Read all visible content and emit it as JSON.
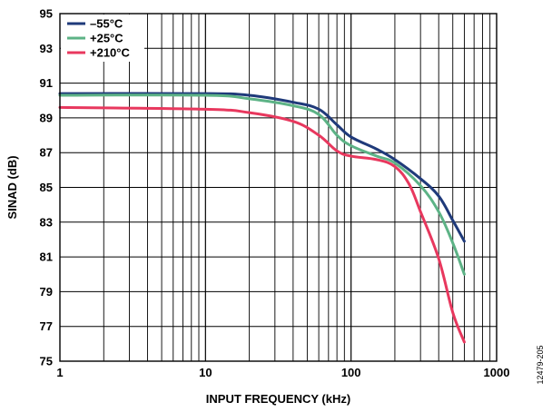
{
  "chart_data": {
    "type": "line",
    "title": "",
    "xlabel": "INPUT FREQUENCY (kHz)",
    "ylabel": "SINAD (dB)",
    "xscale": "log",
    "xlim": [
      1,
      1000
    ],
    "ylim": [
      75,
      95
    ],
    "xticks": [
      1,
      10,
      100,
      1000
    ],
    "xtick_labels": [
      "1",
      "10",
      "100",
      "1000"
    ],
    "yticks": [
      75,
      77,
      79,
      81,
      83,
      85,
      87,
      89,
      91,
      93,
      95
    ],
    "ytick_labels": [
      "75",
      "77",
      "79",
      "81",
      "83",
      "85",
      "87",
      "89",
      "91",
      "93",
      "95"
    ],
    "grid": true,
    "legend_position": "top-left",
    "series": [
      {
        "name": "–55°C",
        "color": "#1f3a7a",
        "x": [
          1,
          10,
          20,
          40,
          60,
          80,
          100,
          150,
          200,
          300,
          400,
          500,
          600
        ],
        "y": [
          90.4,
          90.4,
          90.3,
          89.9,
          89.5,
          88.6,
          87.9,
          87.2,
          86.6,
          85.5,
          84.5,
          83.1,
          81.9
        ]
      },
      {
        "name": "+25°C",
        "color": "#5db386",
        "x": [
          1,
          10,
          20,
          40,
          60,
          80,
          100,
          150,
          200,
          300,
          400,
          500,
          600
        ],
        "y": [
          90.3,
          90.3,
          90.1,
          89.7,
          89.2,
          88.0,
          87.4,
          86.8,
          86.4,
          85.1,
          83.6,
          81.8,
          80.0
        ]
      },
      {
        "name": "+210°C",
        "color": "#e8385e",
        "x": [
          1,
          10,
          20,
          40,
          60,
          80,
          100,
          150,
          200,
          250,
          300,
          400,
          500,
          600
        ],
        "y": [
          89.6,
          89.5,
          89.3,
          88.8,
          88.0,
          87.1,
          86.8,
          86.6,
          86.2,
          85.2,
          83.6,
          80.9,
          77.8,
          76.1
        ]
      }
    ]
  },
  "figure_id": "12479-205"
}
